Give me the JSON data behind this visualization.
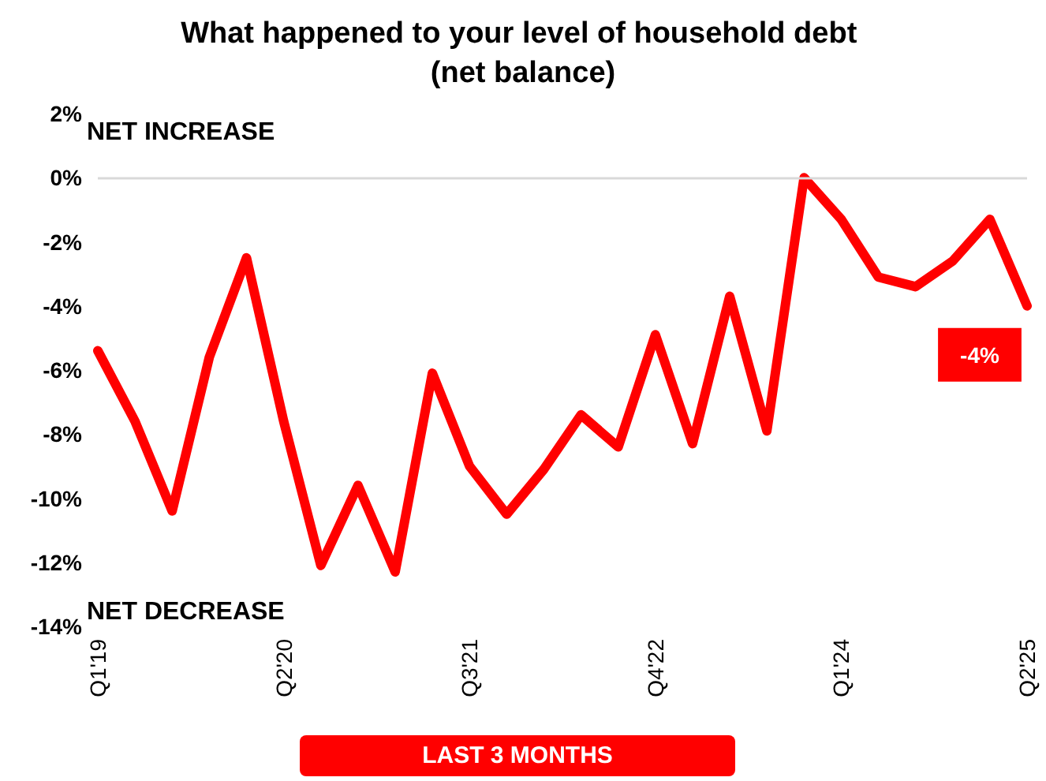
{
  "chart_data": {
    "type": "line",
    "title": "What happened to your level of household debt (net balance)",
    "categories": [
      "Q1'19",
      null,
      null,
      null,
      null,
      "Q2'20",
      null,
      null,
      null,
      null,
      "Q3'21",
      null,
      null,
      null,
      null,
      "Q4'22",
      null,
      null,
      null,
      null,
      "Q1'24",
      null,
      null,
      null,
      null,
      "Q2'25"
    ],
    "series": [
      {
        "color": "#ff0000",
        "values": [
          -5.4,
          -7.6,
          -10.4,
          -5.6,
          -2.5,
          -7.6,
          -12.1,
          -9.6,
          -12.3,
          -6.1,
          -9.0,
          -10.5,
          -9.1,
          -7.4,
          -8.4,
          -4.9,
          -8.3,
          -3.7,
          -7.9,
          0.0,
          -1.3,
          -3.1,
          -3.4,
          -2.6,
          -1.3,
          -4
        ],
        "value_labels": [
          null,
          null,
          null,
          null,
          null,
          null,
          null,
          null,
          null,
          null,
          null,
          null,
          null,
          null,
          null,
          null,
          null,
          null,
          null,
          null,
          null,
          null,
          null,
          null,
          null,
          "-4%"
        ]
      }
    ],
    "ylim": [
      -14,
      2
    ],
    "yticks": [
      {
        "value": -14,
        "label": "-14%"
      },
      {
        "value": -12,
        "label": "-12%"
      },
      {
        "value": -10,
        "label": "-10%"
      },
      {
        "value": -8,
        "label": "-8%"
      },
      {
        "value": -6,
        "label": "-6%"
      },
      {
        "value": -4,
        "label": "-4%"
      },
      {
        "value": -2,
        "label": "-2%"
      },
      {
        "value": 0,
        "label": "0%"
      },
      {
        "value": 2,
        "label": "2%"
      }
    ],
    "ref_lines": [
      {
        "axis": "y",
        "value": 0,
        "color": "#d9d9d9"
      }
    ],
    "annotations": [
      "NET INCREASE",
      "NET DECREASE",
      "LAST 3 MONTHS"
    ],
    "grid": false,
    "line_style": "solid"
  }
}
